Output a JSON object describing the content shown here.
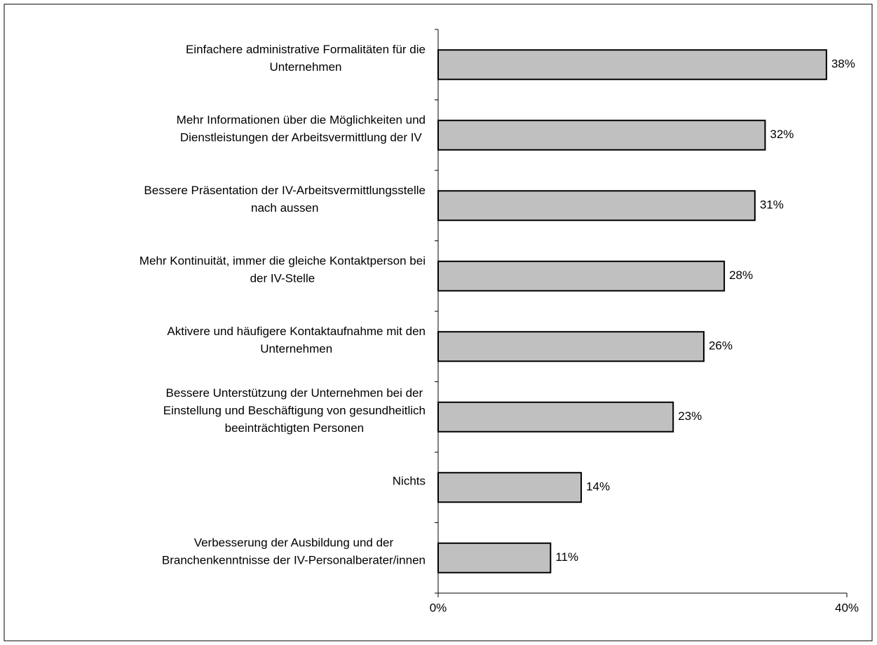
{
  "chart_data": {
    "type": "bar",
    "orientation": "horizontal",
    "categories": [
      [
        "Einfachere administrative Formalitäten für die",
        "Unternehmen"
      ],
      [
        "Mehr Informationen über die Möglichkeiten und",
        "Dienstleistungen der Arbeitsvermittlung der IV"
      ],
      [
        "Bessere Präsentation der IV-Arbeitsvermittlungsstelle",
        "nach aussen"
      ],
      [
        "Mehr Kontinuität, immer die gleiche Kontaktperson bei",
        "der IV-Stelle"
      ],
      [
        "Aktivere und häufigere Kontaktaufnahme mit den",
        "Unternehmen"
      ],
      [
        "Bessere Unterstützung der Unternehmen bei der",
        "Einstellung und Beschäftigung von gesundheitlich",
        "beeinträchtigten Personen"
      ],
      [
        "Nichts"
      ],
      [
        "Verbesserung der Ausbildung und der",
        "Branchenkenntnisse der IV-Personalberater/innen"
      ]
    ],
    "values": [
      38,
      32,
      31,
      28,
      26,
      23,
      14,
      11
    ],
    "value_labels": [
      "38%",
      "32%",
      "31%",
      "28%",
      "26%",
      "23%",
      "14%",
      "11%"
    ],
    "color": "#c0c0c0",
    "xlim": [
      0,
      40
    ],
    "xticks": [
      {
        "value": 0,
        "label": "0%"
      },
      {
        "value": 40,
        "label": "40%"
      }
    ]
  }
}
